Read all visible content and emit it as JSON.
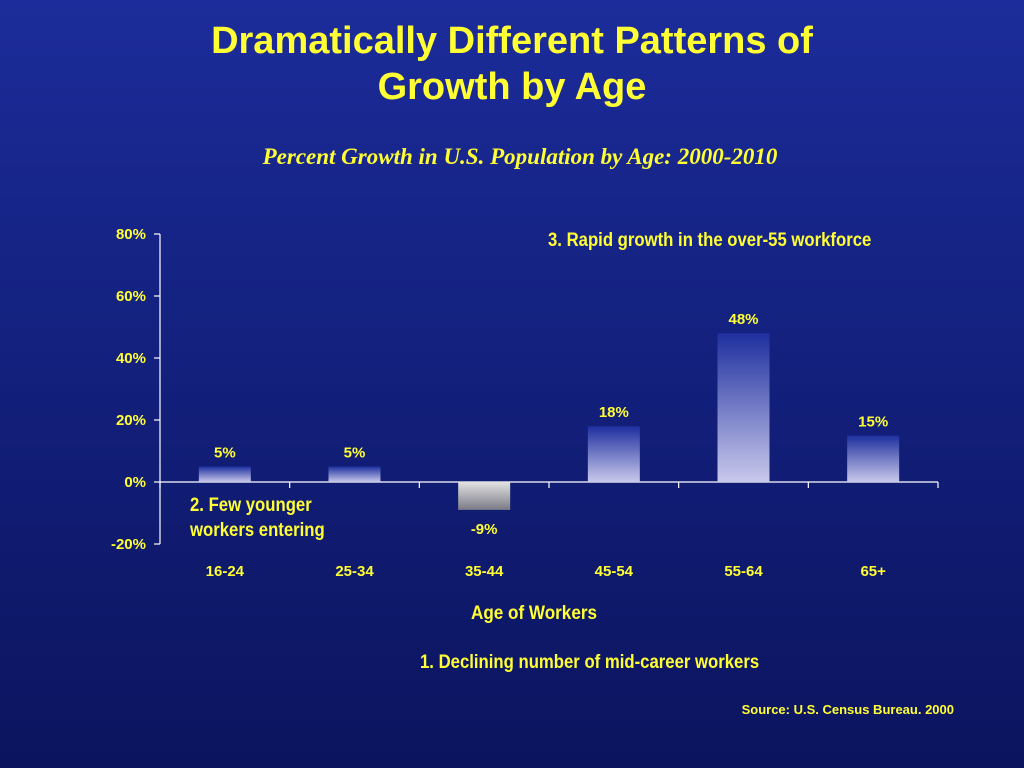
{
  "slide": {
    "title_line1": "Dramatically Different Patterns of",
    "title_line2": "Growth by Age",
    "subtitle": "Percent Growth in U.S. Population by Age:  2000-2010",
    "annotation_1": "1.  Declining number of mid-career workers",
    "annotation_2_line1": "2.  Few younger",
    "annotation_2_line2": "workers entering",
    "annotation_3": "3.  Rapid growth in the over-55 workforce",
    "source": "Source: U.S. Census Bureau. 2000"
  },
  "colors": {
    "text": "#ffff33",
    "label": "#ffffff",
    "bar_top": "#1e2f9e",
    "bar_bottom": "#c9c9ec"
  },
  "chart_data": {
    "type": "bar",
    "categories": [
      "16-24",
      "25-34",
      "35-44",
      "45-54",
      "55-64",
      "65+"
    ],
    "values": [
      5,
      5,
      -9,
      18,
      48,
      15
    ],
    "data_labels": [
      "5%",
      "5%",
      "-9%",
      "18%",
      "48%",
      "15%"
    ],
    "ylim": [
      -20,
      80
    ],
    "yticks": [
      80,
      60,
      40,
      20,
      0,
      -20
    ],
    "ytick_labels": [
      "80%",
      "60%",
      "40%",
      "20%",
      "0%",
      "-20%"
    ],
    "xlabel": "Age of Workers",
    "ylabel": "",
    "grid": false
  }
}
